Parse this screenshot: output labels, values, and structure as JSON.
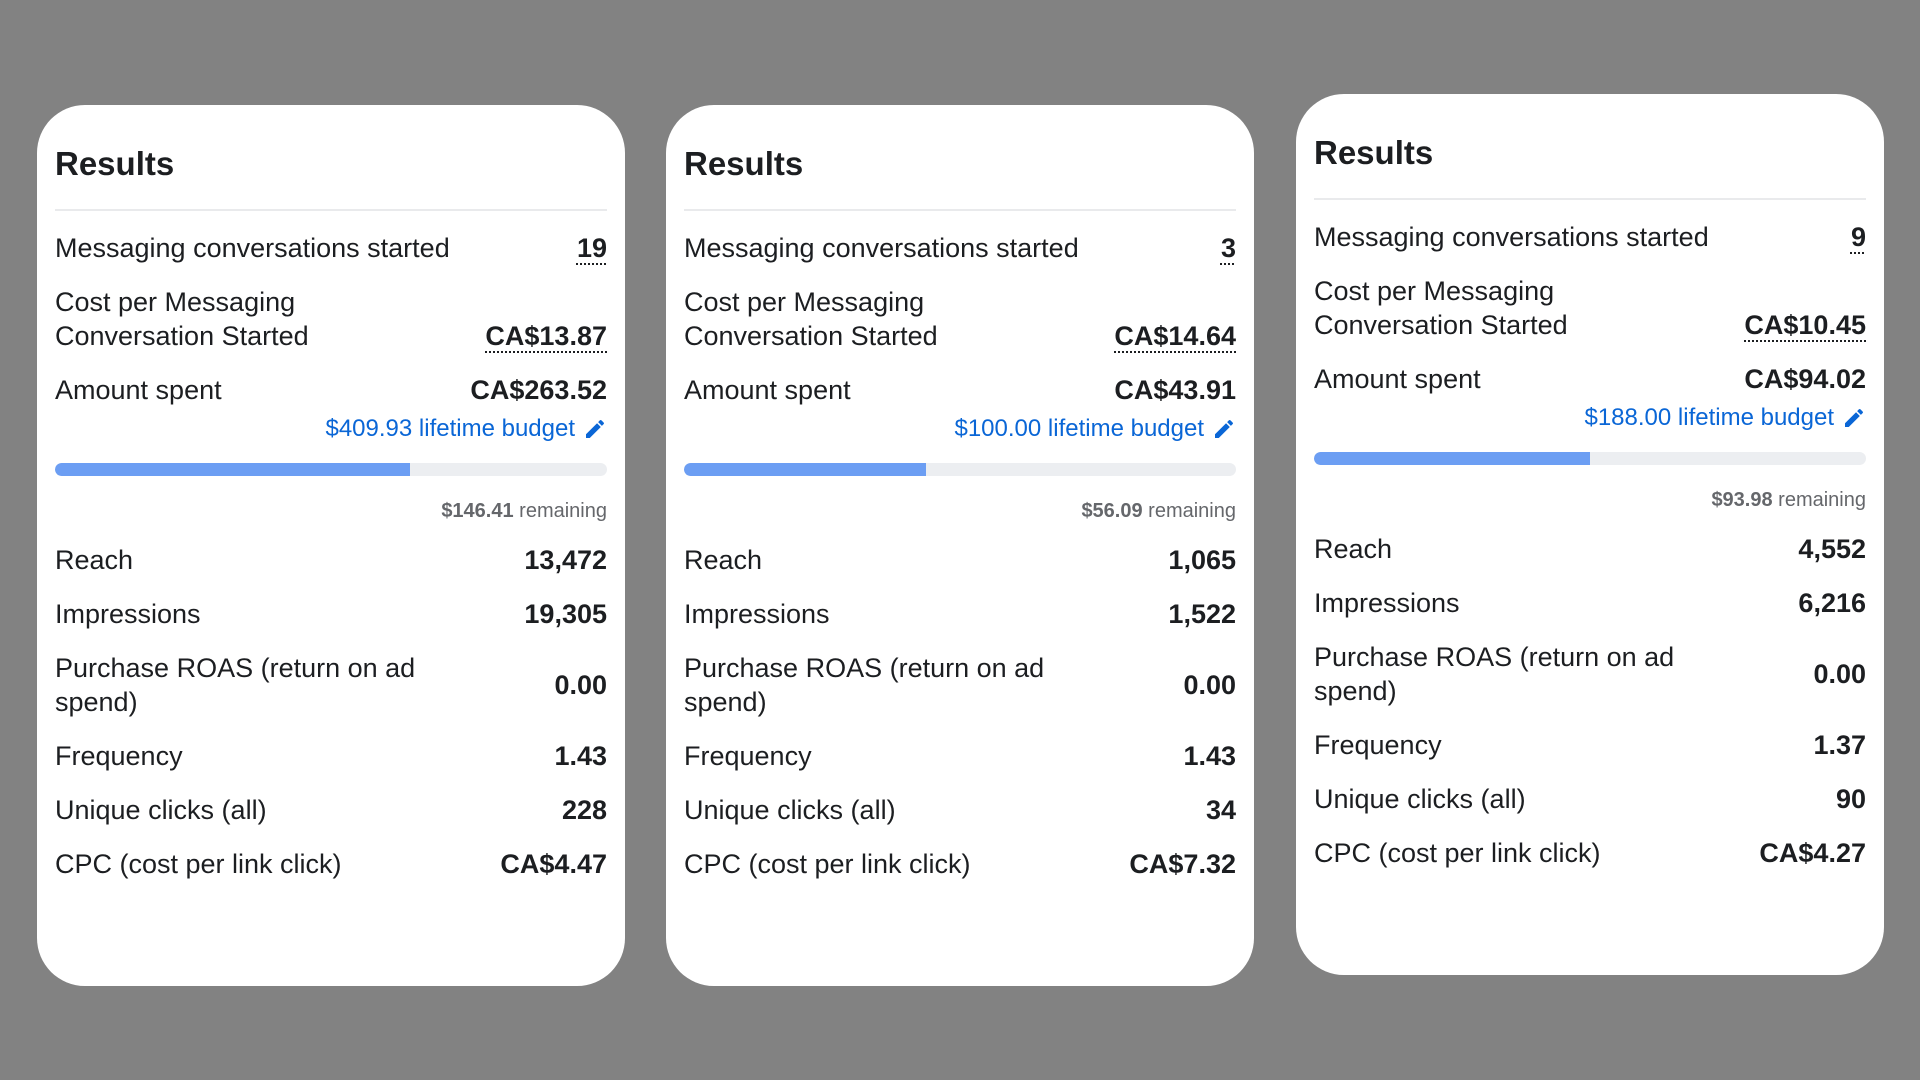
{
  "accent_color": "#0a66d6",
  "bar_color": "#6c9ef3",
  "cards": [
    {
      "title": "Results",
      "messaging": {
        "label": "Messaging conversations started",
        "value": "19"
      },
      "cost_per_messaging": {
        "label": "Cost per Messaging Conversation Started",
        "value": "CA$13.87"
      },
      "amount_spent": {
        "label": "Amount spent",
        "value": "CA$263.52"
      },
      "budget": {
        "text": "$409.93 lifetime budget",
        "icon": "pencil-icon",
        "spent_fraction": 0.643
      },
      "remaining": {
        "amount": "$146.41",
        "label": "remaining"
      },
      "reach": {
        "label": "Reach",
        "value": "13,472"
      },
      "impressions": {
        "label": "Impressions",
        "value": "19,305"
      },
      "roas": {
        "label": "Purchase ROAS (return on ad spend)",
        "value": "0.00"
      },
      "frequency": {
        "label": "Frequency",
        "value": "1.43"
      },
      "unique_clicks": {
        "label": "Unique clicks (all)",
        "value": "228"
      },
      "cpc": {
        "label": "CPC (cost per link click)",
        "value": "CA$4.47"
      }
    },
    {
      "title": "Results",
      "messaging": {
        "label": "Messaging conversations started",
        "value": "3"
      },
      "cost_per_messaging": {
        "label": "Cost per Messaging Conversation Started",
        "value": "CA$14.64"
      },
      "amount_spent": {
        "label": "Amount spent",
        "value": "CA$43.91"
      },
      "budget": {
        "text": "$100.00 lifetime budget",
        "icon": "pencil-icon",
        "spent_fraction": 0.439
      },
      "remaining": {
        "amount": "$56.09",
        "label": "remaining"
      },
      "reach": {
        "label": "Reach",
        "value": "1,065"
      },
      "impressions": {
        "label": "Impressions",
        "value": "1,522"
      },
      "roas": {
        "label": "Purchase ROAS (return on ad spend)",
        "value": "0.00"
      },
      "frequency": {
        "label": "Frequency",
        "value": "1.43"
      },
      "unique_clicks": {
        "label": "Unique clicks (all)",
        "value": "34"
      },
      "cpc": {
        "label": "CPC (cost per link click)",
        "value": "CA$7.32"
      }
    },
    {
      "title": "Results",
      "messaging": {
        "label": "Messaging conversations started",
        "value": "9"
      },
      "cost_per_messaging": {
        "label": "Cost per Messaging Conversation Started",
        "value": "CA$10.45"
      },
      "amount_spent": {
        "label": "Amount spent",
        "value": "CA$94.02"
      },
      "budget": {
        "text": "$188.00 lifetime budget",
        "icon": "pencil-icon",
        "spent_fraction": 0.5
      },
      "remaining": {
        "amount": "$93.98",
        "label": "remaining"
      },
      "reach": {
        "label": "Reach",
        "value": "4,552"
      },
      "impressions": {
        "label": "Impressions",
        "value": "6,216"
      },
      "roas": {
        "label": "Purchase ROAS (return on ad spend)",
        "value": "0.00"
      },
      "frequency": {
        "label": "Frequency",
        "value": "1.37"
      },
      "unique_clicks": {
        "label": "Unique clicks (all)",
        "value": "90"
      },
      "cpc": {
        "label": "CPC (cost per link click)",
        "value": "CA$4.27"
      }
    }
  ]
}
